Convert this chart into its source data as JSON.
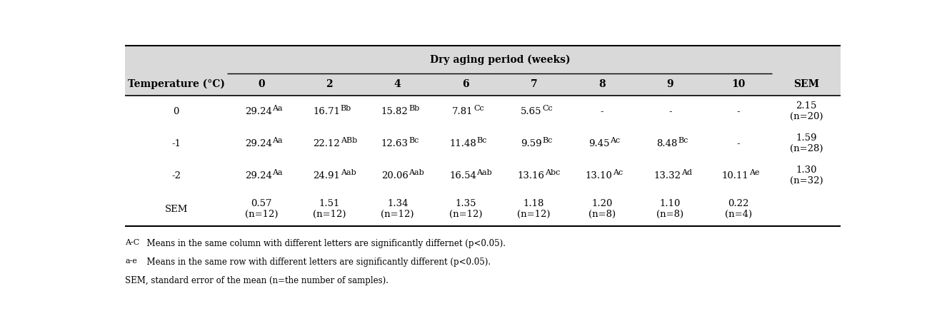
{
  "title": "Dry aging period (weeks)",
  "col_header": [
    "0",
    "2",
    "4",
    "6",
    "7",
    "8",
    "9",
    "10"
  ],
  "data": {
    "0": [
      "29.24^{Aa}",
      "16.71^{Bb}",
      "15.82^{Bb}",
      "7.81^{Cc}",
      "5.65^{Cc}",
      "-",
      "-",
      "-"
    ],
    "-1": [
      "29.24^{Aa}",
      "22.12^{ABb}",
      "12.63^{Bc}",
      "11.48^{Bc}",
      "9.59^{Bc}",
      "9.45^{Ac}",
      "8.48^{Bc}",
      "-"
    ],
    "-2": [
      "29.24^{Aa}",
      "24.91^{Aab}",
      "20.06^{Aab}",
      "16.54^{Aab}",
      "13.16^{Abc}",
      "13.10^{Ac}",
      "13.32^{Ad}",
      "10.11^{Ae}"
    ],
    "SEM": [
      "0.57\n(n=12)",
      "1.51\n(n=12)",
      "1.34\n(n=12)",
      "1.35\n(n=12)",
      "1.18\n(n=12)",
      "1.20\n(n=8)",
      "1.10\n(n=8)",
      "0.22\n(n=4)"
    ]
  },
  "sem_col": {
    "0": "2.15\n(n=20)",
    "-1": "1.59\n(n=28)",
    "-2": "1.30\n(n=32)",
    "SEM": ""
  },
  "footnotes": [
    [
      "A-C",
      "  Means in the same column with different letters are significantly differnet (p<0.05)."
    ],
    [
      "a-e",
      "  Means in the same row with different letters are significantly different (p<0.05)."
    ],
    [
      "",
      "SEM, standard error of the mean (n=the number of samples)."
    ]
  ],
  "header_bg": "#d9d9d9",
  "body_bg": "#ffffff",
  "font_size": 9.5,
  "header_font_size": 10,
  "footnote_font_size": 8.5
}
